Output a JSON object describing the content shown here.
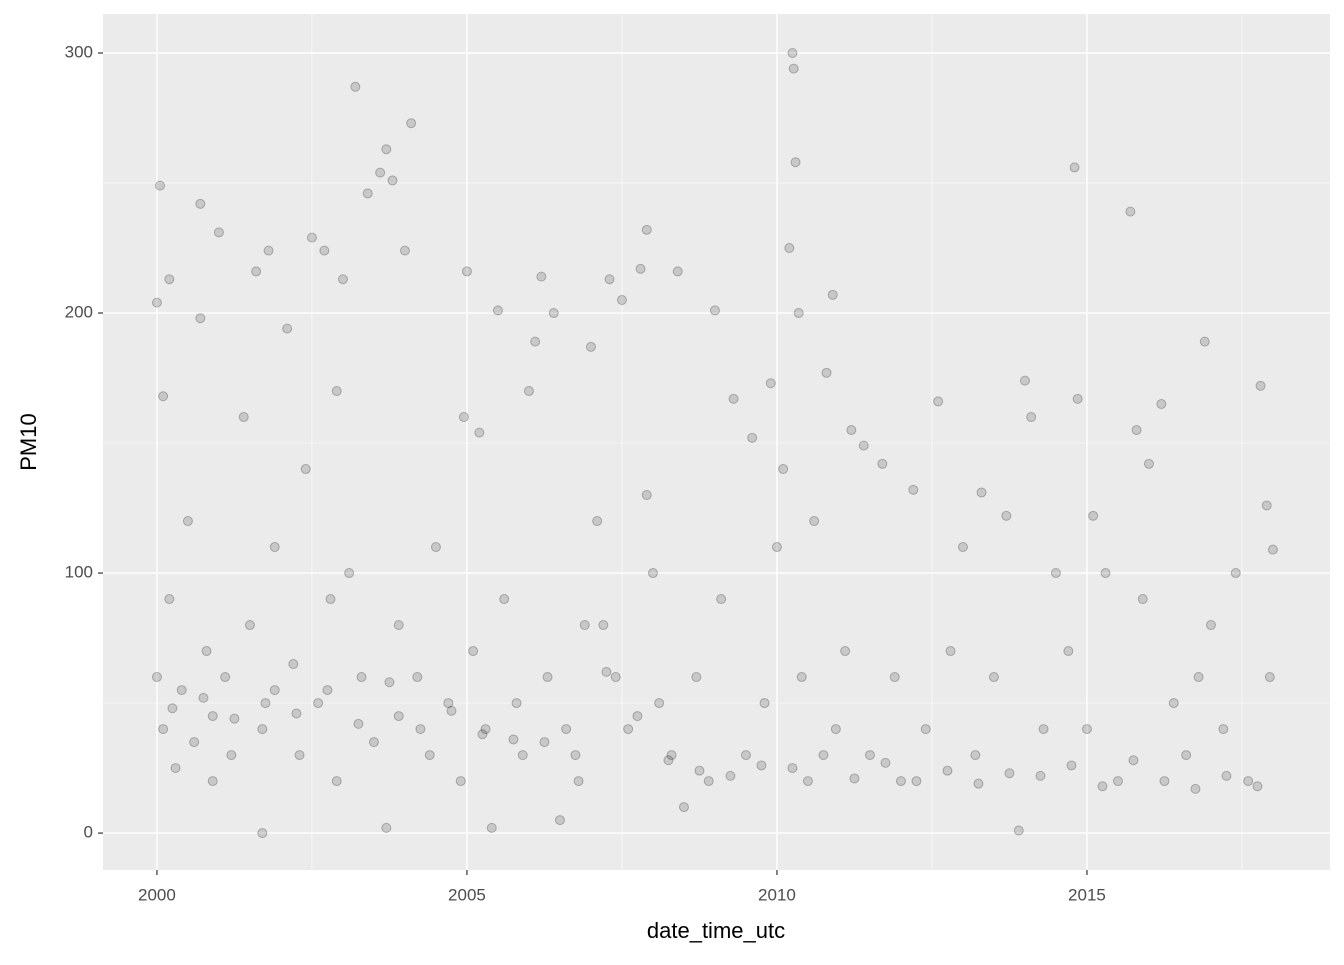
{
  "chart_data": {
    "type": "scatter",
    "x_label": "date_time_utc",
    "y_label": "PM10",
    "xlim": [
      1999.13,
      2018.92
    ],
    "ylim": [
      -14.2,
      315
    ],
    "xticks": [
      2000,
      2005,
      2010,
      2015
    ],
    "yticks": [
      0,
      100,
      200,
      300
    ],
    "x_minor_ticks": [
      2002.5,
      2007.5,
      2012.5,
      2017.5
    ],
    "y_minor_ticks": [
      50,
      150,
      250
    ],
    "grid": true,
    "series": [
      {
        "color": "#000000",
        "x": [
          2000.0,
          2000.05,
          2000.1,
          2000.2,
          2000.0,
          2000.1,
          2000.2,
          2000.3,
          2000.4,
          2000.5,
          2000.6,
          2000.7,
          2000.7,
          2000.8,
          2000.9,
          2000.9,
          2001.0,
          2001.1,
          2001.2,
          2001.4,
          2001.5,
          2001.6,
          2001.7,
          2001.7,
          2001.8,
          2001.9,
          2001.9,
          2002.1,
          2002.2,
          2002.3,
          2002.4,
          2002.5,
          2002.6,
          2002.7,
          2002.8,
          2002.9,
          2002.9,
          2003.0,
          2003.1,
          2003.2,
          2003.3,
          2003.4,
          2003.5,
          2003.6,
          2003.7,
          2003.7,
          2003.8,
          2003.9,
          2003.9,
          2004.0,
          2004.1,
          2004.2,
          2004.4,
          2004.5,
          2004.7,
          2004.9,
          2004.95,
          2005.0,
          2005.1,
          2005.2,
          2005.3,
          2005.4,
          2005.5,
          2005.6,
          2005.8,
          2005.9,
          2006.0,
          2006.1,
          2006.2,
          2006.3,
          2006.4,
          2006.5,
          2006.6,
          2006.8,
          2006.9,
          2007.0,
          2007.1,
          2007.2,
          2007.3,
          2007.4,
          2007.5,
          2007.6,
          2007.8,
          2007.9,
          2007.9,
          2008.0,
          2008.1,
          2008.3,
          2008.4,
          2008.5,
          2008.7,
          2008.9,
          2009.0,
          2009.1,
          2009.3,
          2009.5,
          2009.6,
          2009.8,
          2009.9,
          2010.0,
          2010.1,
          2010.2,
          2010.25,
          2010.27,
          2010.3,
          2010.35,
          2010.4,
          2010.5,
          2010.6,
          2010.8,
          2010.9,
          2010.95,
          2011.1,
          2011.2,
          2011.4,
          2011.5,
          2011.7,
          2011.9,
          2012.0,
          2012.2,
          2012.4,
          2012.6,
          2012.8,
          2013.0,
          2013.2,
          2013.3,
          2013.5,
          2013.7,
          2013.9,
          2014.0,
          2014.1,
          2014.3,
          2014.5,
          2014.7,
          2014.8,
          2014.85,
          2015.0,
          2015.1,
          2015.3,
          2015.5,
          2015.7,
          2015.8,
          2015.9,
          2016.0,
          2016.2,
          2016.4,
          2016.6,
          2016.8,
          2016.9,
          2017.0,
          2017.2,
          2017.4,
          2017.6,
          2017.8,
          2017.9,
          2018.0,
          2017.95,
          2000.25,
          2000.75,
          2001.25,
          2001.75,
          2002.25,
          2002.75,
          2003.25,
          2003.75,
          2004.25,
          2004.75,
          2005.25,
          2005.75,
          2006.25,
          2006.75,
          2007.25,
          2007.75,
          2008.25,
          2008.75,
          2009.25,
          2009.75,
          2010.25,
          2010.75,
          2011.25,
          2011.75,
          2012.25,
          2012.75,
          2013.25,
          2013.75,
          2014.25,
          2014.75,
          2015.25,
          2015.75,
          2016.25,
          2016.75,
          2017.25,
          2017.75
        ],
        "values": [
          204,
          249,
          168,
          213,
          60,
          40,
          90,
          25,
          55,
          120,
          35,
          242,
          198,
          70,
          20,
          45,
          231,
          60,
          30,
          160,
          80,
          216,
          40,
          0,
          224,
          110,
          55,
          194,
          65,
          30,
          140,
          229,
          50,
          224,
          90,
          20,
          170,
          213,
          100,
          287,
          60,
          246,
          35,
          254,
          263,
          2,
          251,
          80,
          45,
          224,
          273,
          60,
          30,
          110,
          50,
          20,
          160,
          216,
          70,
          154,
          40,
          2,
          201,
          90,
          50,
          30,
          170,
          189,
          214,
          60,
          200,
          5,
          40,
          20,
          80,
          187,
          120,
          80,
          213,
          60,
          205,
          40,
          217,
          232,
          130,
          100,
          50,
          30,
          216,
          10,
          60,
          20,
          201,
          90,
          167,
          30,
          152,
          50,
          173,
          110,
          140,
          225,
          300,
          294,
          258,
          200,
          60,
          20,
          120,
          177,
          207,
          40,
          70,
          155,
          149,
          30,
          142,
          60,
          20,
          132,
          40,
          166,
          70,
          110,
          30,
          131,
          60,
          122,
          1,
          174,
          160,
          40,
          100,
          70,
          256,
          167,
          40,
          122,
          100,
          20,
          239,
          155,
          90,
          142,
          165,
          50,
          30,
          60,
          189,
          80,
          40,
          100,
          20,
          172,
          126,
          109,
          60,
          48,
          52,
          44,
          50,
          46,
          55,
          42,
          58,
          40,
          47,
          38,
          36,
          35,
          30,
          62,
          45,
          28,
          24,
          22,
          26,
          25,
          30,
          21,
          27,
          20,
          24,
          19,
          23,
          22,
          26,
          18,
          28,
          20,
          17,
          22,
          18
        ]
      }
    ]
  }
}
